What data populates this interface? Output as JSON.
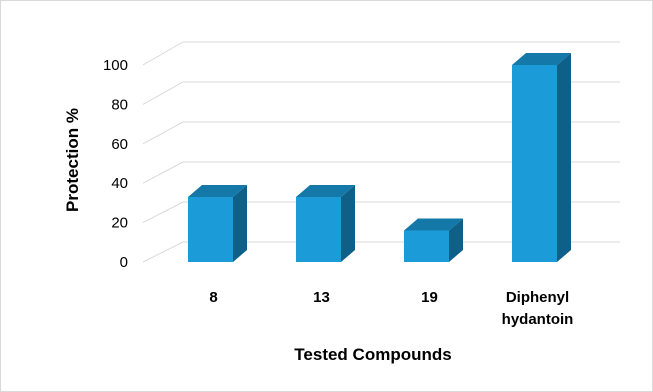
{
  "chart_data": {
    "type": "bar",
    "style": "3d-column",
    "categories": [
      [
        "8"
      ],
      [
        "13"
      ],
      [
        "19"
      ],
      [
        "Diphenyl",
        "hydantoin"
      ]
    ],
    "values": [
      33,
      33,
      16,
      100
    ],
    "xlabel": "Tested Compounds",
    "ylabel": "Protection %",
    "ylim": [
      0,
      100
    ],
    "yticks": [
      0,
      20,
      40,
      60,
      80,
      100
    ],
    "grid": true,
    "legend": "none",
    "colors": {
      "front": "#1b9cd8",
      "top": "#1478a8",
      "side": "#0e6088",
      "grid": "#d9d9d9"
    }
  }
}
